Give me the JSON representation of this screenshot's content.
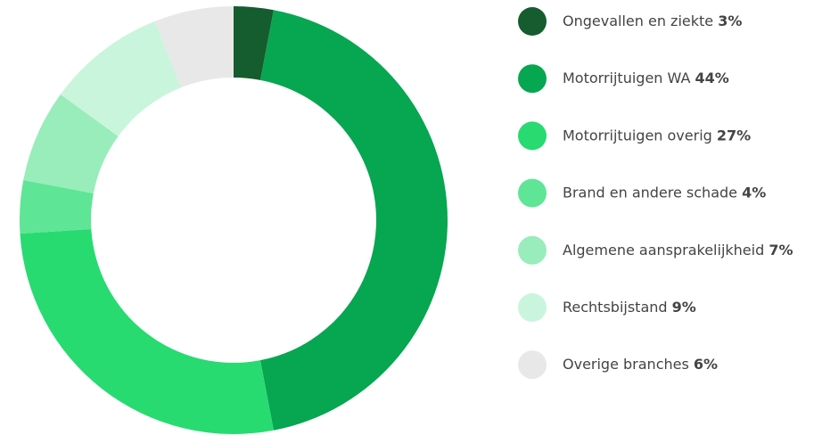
{
  "chart_data": {
    "type": "donut",
    "categories": [
      "Ongevallen en ziekte",
      "Motorrijtuigen WA",
      "Motorrijtuigen overig",
      "Brand en andere schade",
      "Algemene aansprakelijkheid",
      "Rechtsbijstand",
      "Overige branches"
    ],
    "values": [
      3,
      44,
      27,
      4,
      7,
      9,
      6
    ],
    "value_labels": [
      "3%",
      "44%",
      "27%",
      "4%",
      "7%",
      "9%",
      "6%"
    ],
    "colors": [
      "#155c2e",
      "#07a651",
      "#27db71",
      "#5ee595",
      "#98edba",
      "#c9f5dc",
      "#e8e8e8"
    ],
    "legend": "right"
  }
}
